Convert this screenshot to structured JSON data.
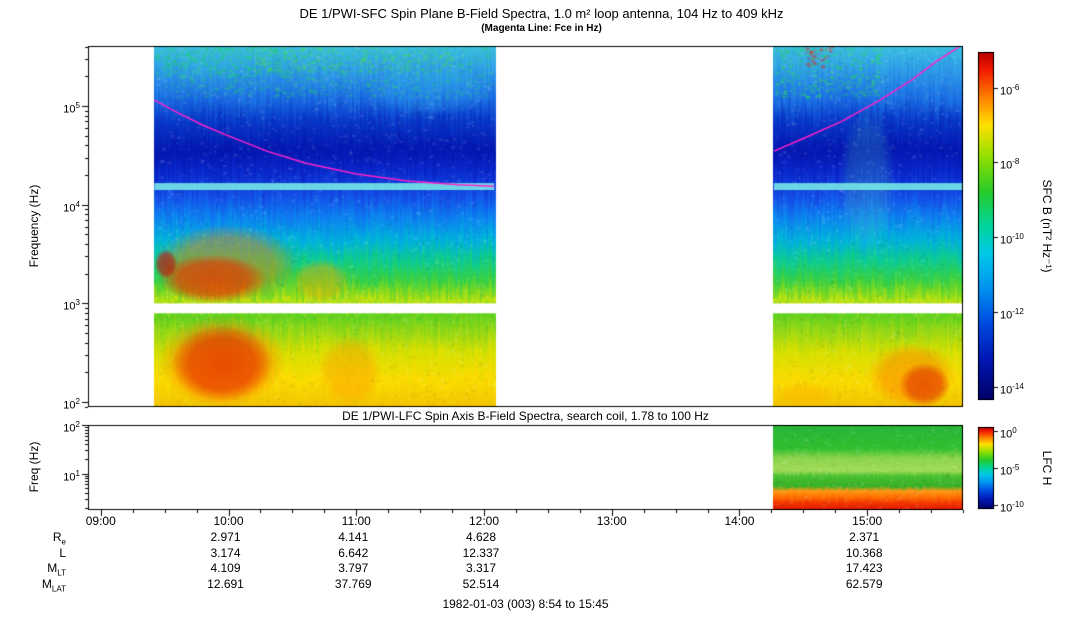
{
  "figure": {
    "footer": "1982-01-03 (003) 8:54 to 15:45"
  },
  "chart_data": [
    {
      "id": "sfc",
      "type": "heatmap",
      "title": "DE 1/PWI-SFC  Spin Plane B-Field Spectra, 1.0 m² loop antenna, 104 Hz to 409 kHz",
      "subtitle": "(Magenta Line: Fce in Hz)",
      "ylabel": "Frequency (Hz)",
      "yaxis_log": true,
      "ylog_range": [
        1.95,
        5.61
      ],
      "ytick_exps": [
        5,
        4,
        3,
        2
      ],
      "x_hours_range": [
        8.9,
        15.75
      ],
      "xtick_hours": [
        9,
        10,
        11,
        12,
        13,
        14,
        15
      ],
      "xtick_labels": [
        "09:00",
        "10:00",
        "11:00",
        "12:00",
        "13:00",
        "14:00",
        "15:00"
      ],
      "colorbar": {
        "label": "SFC B (nT² Hz⁻¹)",
        "tick_exps": [
          -6,
          -8,
          -10,
          -12,
          -14
        ],
        "log_range": [
          -5.05,
          -14.35
        ]
      },
      "segments_hours": [
        [
          9.42,
          12.08
        ],
        [
          14.27,
          15.75
        ]
      ],
      "white_gap_logf": [
        2.9,
        3.0
      ],
      "jitter": 0.018,
      "base_gradient": [
        [
          5.61,
          "#3cc0e0"
        ],
        [
          5.38,
          "#2f9fe8"
        ],
        [
          5.08,
          "#1b6fe4"
        ],
        [
          4.85,
          "#0838c8"
        ],
        [
          4.55,
          "#0416b0"
        ],
        [
          4.32,
          "#0a28cc"
        ],
        [
          4.08,
          "#1450e8"
        ],
        [
          3.86,
          "#0c84f0"
        ],
        [
          3.64,
          "#00b2dc"
        ],
        [
          3.44,
          "#0ecc8e"
        ],
        [
          3.24,
          "#36d046"
        ],
        [
          3.1,
          "#84da1e"
        ],
        [
          3.0,
          "#c8e410"
        ],
        [
          2.9,
          "#58d020"
        ],
        [
          2.72,
          "#96d816"
        ],
        [
          2.5,
          "#d8e000"
        ],
        [
          2.22,
          "#fbdc00"
        ],
        [
          1.95,
          "#f2c400"
        ]
      ],
      "patches": [
        {
          "t": [
            9.42,
            10.55
          ],
          "logf": [
            3.0,
            3.8
          ],
          "color": "#ff7700",
          "alpha": 0.5,
          "style": "blob"
        },
        {
          "t": [
            9.45,
            10.3
          ],
          "logf": [
            3.0,
            3.5
          ],
          "color": "#e83000",
          "alpha": 0.7,
          "style": "blob"
        },
        {
          "t": [
            9.42,
            9.6
          ],
          "logf": [
            3.25,
            3.55
          ],
          "color": "#cc0000",
          "alpha": 0.65,
          "style": "blob"
        },
        {
          "t": [
            10.5,
            10.95
          ],
          "logf": [
            3.0,
            3.45
          ],
          "color": "#ffaa00",
          "alpha": 0.45,
          "style": "blob"
        },
        {
          "t": [
            9.5,
            12.05
          ],
          "logf": [
            5.1,
            5.61
          ],
          "color": "#2ad464",
          "alpha": 0.3,
          "style": "speckle"
        },
        {
          "t": [
            9.42,
            10.45
          ],
          "logf": [
            5.3,
            5.61
          ],
          "color": "#1fd07a",
          "alpha": 0.55,
          "style": "speckle"
        },
        {
          "t": [
            10.2,
            11.75
          ],
          "logf": [
            5.35,
            5.61
          ],
          "color": "#55e044",
          "alpha": 0.35,
          "style": "speckle"
        },
        {
          "t": [
            11.1,
            12.05
          ],
          "logf": [
            4.9,
            5.4
          ],
          "color": "#38c8f0",
          "alpha": 0.2,
          "style": "blob"
        },
        {
          "t": [
            14.27,
            15.1
          ],
          "logf": [
            5.1,
            5.61
          ],
          "color": "#2ad464",
          "alpha": 0.5,
          "style": "speckle"
        },
        {
          "t": [
            14.5,
            14.72
          ],
          "logf": [
            5.4,
            5.61
          ],
          "color": "#ee2200",
          "alpha": 0.6,
          "style": "speckle"
        },
        {
          "t": [
            14.78,
            15.22
          ],
          "logf": [
            3.45,
            5.0
          ],
          "color": "#55ddbb",
          "alpha": 0.22,
          "style": "blob"
        },
        {
          "t": [
            9.42,
            12.08
          ],
          "logf": [
            4.15,
            4.22
          ],
          "color": "#7df0e6",
          "alpha": 0.85,
          "style": "band"
        },
        {
          "t": [
            14.27,
            15.75
          ],
          "logf": [
            4.15,
            4.22
          ],
          "color": "#7df0e6",
          "alpha": 0.85,
          "style": "band"
        },
        {
          "t": [
            9.45,
            10.45
          ],
          "logf": [
            1.95,
            2.88
          ],
          "color": "#ff6600",
          "alpha": 0.55,
          "style": "blob"
        },
        {
          "t": [
            9.55,
            10.35
          ],
          "logf": [
            2.0,
            2.78
          ],
          "color": "#e01800",
          "alpha": 0.6,
          "style": "blob"
        },
        {
          "t": [
            10.7,
            11.2
          ],
          "logf": [
            1.95,
            2.68
          ],
          "color": "#ff9900",
          "alpha": 0.45,
          "style": "blob"
        },
        {
          "t": [
            14.28,
            14.75
          ],
          "logf": [
            1.95,
            2.2
          ],
          "color": "#ffaa00",
          "alpha": 0.35,
          "style": "blob"
        },
        {
          "t": [
            15.0,
            15.7
          ],
          "logf": [
            1.95,
            2.6
          ],
          "color": "#ff7700",
          "alpha": 0.5,
          "style": "blob"
        },
        {
          "t": [
            15.25,
            15.65
          ],
          "logf": [
            1.95,
            2.4
          ],
          "color": "#dd2200",
          "alpha": 0.6,
          "style": "blob"
        }
      ],
      "fce_line": {
        "color": "#ff22cc",
        "segments": [
          [
            [
              9.42,
              115000
            ],
            [
              9.6,
              86000
            ],
            [
              9.8,
              64000
            ],
            [
              10.0,
              50000
            ],
            [
              10.3,
              35000
            ],
            [
              10.6,
              26500
            ],
            [
              11.0,
              20500
            ],
            [
              11.4,
              17400
            ],
            [
              11.8,
              16000
            ],
            [
              12.08,
              15400
            ]
          ],
          [
            [
              14.27,
              35000
            ],
            [
              14.5,
              47000
            ],
            [
              14.8,
              70000
            ],
            [
              15.1,
              115000
            ],
            [
              15.35,
              185000
            ],
            [
              15.55,
              290000
            ],
            [
              15.72,
              400000
            ]
          ]
        ]
      }
    },
    {
      "id": "lfc",
      "type": "heatmap",
      "title": "DE 1/PWI-LFC  Spin Axis B-Field Spectra, search coil, 1.78 to 100 Hz",
      "ylabel": "Freq (Hz)",
      "yaxis_log": true,
      "ylog_range": [
        0.25,
        2.0
      ],
      "ytick_exps": [
        2,
        1
      ],
      "x_hours_range": [
        8.9,
        15.75
      ],
      "colorbar": {
        "label": "LFC H",
        "tick_exps": [
          0,
          -5,
          -10
        ],
        "log_range": [
          0.5,
          -10.6
        ]
      },
      "segments_hours": [
        [
          14.27,
          15.75
        ]
      ],
      "jitter": 0.012,
      "base_gradient": [
        [
          2.0,
          "#28b438"
        ],
        [
          1.52,
          "#30c030"
        ],
        [
          1.32,
          "#8cd44c"
        ],
        [
          1.06,
          "#a2dc58"
        ],
        [
          0.94,
          "#48c030"
        ],
        [
          0.74,
          "#38b028"
        ],
        [
          0.64,
          "#ff9914"
        ],
        [
          0.5,
          "#ff6a00"
        ],
        [
          0.4,
          "#f23800"
        ],
        [
          0.25,
          "#df1800"
        ]
      ],
      "patches": []
    }
  ],
  "colorbar_gradient": [
    [
      0,
      "#b40000"
    ],
    [
      0.05,
      "#f01800"
    ],
    [
      0.13,
      "#ff8000"
    ],
    [
      0.21,
      "#ffe000"
    ],
    [
      0.3,
      "#94e000"
    ],
    [
      0.4,
      "#28cc28"
    ],
    [
      0.5,
      "#00d49e"
    ],
    [
      0.58,
      "#00c8e8"
    ],
    [
      0.68,
      "#0092f0"
    ],
    [
      0.78,
      "#004ae0"
    ],
    [
      0.88,
      "#0018b4"
    ],
    [
      1,
      "#000066"
    ]
  ],
  "ephemeris": {
    "column_hours": [
      10,
      11,
      12,
      15
    ],
    "rows": [
      {
        "label": {
          "main": "R",
          "sub": "e"
        },
        "values": [
          "2.971",
          "4.141",
          "4.628",
          "2.371"
        ]
      },
      {
        "label": {
          "main": "L",
          "sub": ""
        },
        "values": [
          "3.174",
          "6.642",
          "12.337",
          "10.368"
        ]
      },
      {
        "label": {
          "main": "M",
          "sub": "LT"
        },
        "values": [
          "4.109",
          "3.797",
          "3.317",
          "17.423"
        ]
      },
      {
        "label": {
          "main": "M",
          "sub": "LAT"
        },
        "values": [
          "12.691",
          "37.769",
          "52.514",
          "62.579"
        ]
      }
    ]
  }
}
